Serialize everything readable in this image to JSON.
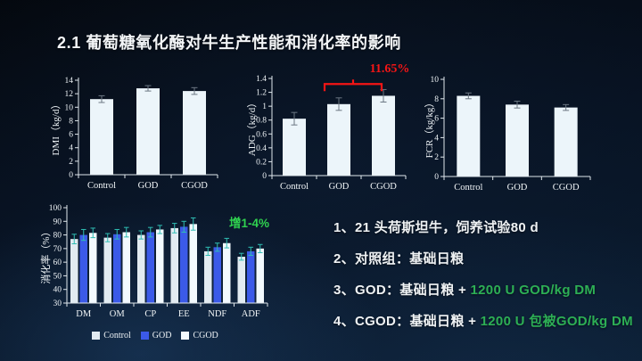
{
  "slide": {
    "title": "2.1  葡萄糖氧化酶对牛生产性能和消化率的影响"
  },
  "colors": {
    "background_top": "#04080e",
    "background_bottom": "#0a1c30",
    "axis": "#dfe7ec",
    "bar_light": "#ecf5fa",
    "bar_control": "#e2ebf1",
    "bar_god_blue": "#3b5ae8",
    "bar_cgod": "#f3fafe",
    "error_dark": "#6b7682",
    "error_teal": "#2fbdb3",
    "annotation_red": "#f51515",
    "annotation_green": "#2fd14f",
    "text_green": "#2daf55",
    "text_white": "#eff2f4"
  },
  "chart_data": [
    {
      "id": "dmi",
      "type": "bar",
      "title": "",
      "xlabel": "",
      "ylabel": "DMI（kg/d）",
      "ylim": [
        0,
        14
      ],
      "yticks": [
        "0",
        "2",
        "4",
        "6",
        "8",
        "10",
        "12",
        "14"
      ],
      "categories": [
        "Control",
        "GOD",
        "CGOD"
      ],
      "series": [
        {
          "name": "DMI",
          "color": "#ecf5fa",
          "values": [
            11.2,
            12.8,
            12.4
          ],
          "errors": [
            0.5,
            0.4,
            0.5
          ]
        }
      ],
      "error_color": "#6b7682",
      "grid": false
    },
    {
      "id": "adg",
      "type": "bar",
      "title": "",
      "xlabel": "",
      "ylabel": "ADG（kg/d）",
      "ylim": [
        0,
        1.4
      ],
      "yticks": [
        "0",
        "0.2",
        "0.4",
        "0.6",
        "0.8",
        "1",
        "1.2",
        "1.4"
      ],
      "categories": [
        "Control",
        "GOD",
        "CGOD"
      ],
      "series": [
        {
          "name": "ADG",
          "color": "#ecf5fa",
          "values": [
            0.82,
            1.03,
            1.15
          ],
          "errors": [
            0.09,
            0.09,
            0.09
          ]
        }
      ],
      "error_color": "#6b7682",
      "annotation": {
        "label": "11.65%",
        "from": 1,
        "to": 2,
        "at": 1.32,
        "color": "#f51515"
      },
      "grid": false
    },
    {
      "id": "fcr",
      "type": "bar",
      "title": "",
      "xlabel": "",
      "ylabel": "FCR（kg/kg）",
      "ylim": [
        0,
        10
      ],
      "yticks": [
        "0",
        "2",
        "4",
        "6",
        "8",
        "10"
      ],
      "categories": [
        "Control",
        "GOD",
        "CGOD"
      ],
      "series": [
        {
          "name": "FCR",
          "color": "#ecf5fa",
          "values": [
            8.3,
            7.4,
            7.1
          ],
          "errors": [
            0.3,
            0.35,
            0.3
          ]
        }
      ],
      "error_color": "#6b7682",
      "grid": false
    },
    {
      "id": "digest",
      "type": "bar",
      "title": "",
      "xlabel": "",
      "ylabel": "消化率（%）",
      "ylim": [
        30,
        100
      ],
      "yticks": [
        "30",
        "40",
        "50",
        "60",
        "70",
        "80",
        "90",
        "100"
      ],
      "categories": [
        "DM",
        "OM",
        "CP",
        "EE",
        "NDF",
        "ADF"
      ],
      "series": [
        {
          "name": "Control",
          "color": "#e2ebf1",
          "values": [
            77,
            78,
            80,
            85,
            68,
            64
          ],
          "errors": [
            3.5,
            3,
            3,
            3.5,
            3,
            2.5
          ]
        },
        {
          "name": "GOD",
          "color": "#3b5ae8",
          "values": [
            80,
            80.5,
            82,
            86,
            71,
            68
          ],
          "errors": [
            4,
            3.5,
            3.5,
            4,
            3,
            3
          ]
        },
        {
          "name": "CGOD",
          "color": "#f3fafe",
          "values": [
            81.5,
            82,
            84,
            88,
            74,
            70
          ],
          "errors": [
            3.5,
            3.5,
            3,
            4.5,
            3.5,
            3
          ]
        }
      ],
      "error_color": "#2fbdb3",
      "legend": {
        "labels": [
          "Control",
          "GOD",
          "CGOD"
        ],
        "position": "bottom"
      },
      "note": {
        "label": "增1-4%",
        "color": "#2fd14f"
      },
      "grid": false
    }
  ],
  "notes": {
    "lines": [
      {
        "segments": [
          {
            "text": "1、21 头荷斯坦牛，饲养试验80 d"
          }
        ]
      },
      {
        "segments": [
          {
            "text": "2、对照组：基础日粮"
          }
        ]
      },
      {
        "segments": [
          {
            "text": "3、GOD：基础日粮 + "
          },
          {
            "text": "1200 U GOD/kg DM",
            "color": "#2daf55"
          }
        ]
      },
      {
        "segments": [
          {
            "text": "4、CGOD：基础日粮 + "
          },
          {
            "text": "1200 U 包被GOD/kg DM",
            "color": "#2daf55"
          }
        ]
      }
    ]
  }
}
